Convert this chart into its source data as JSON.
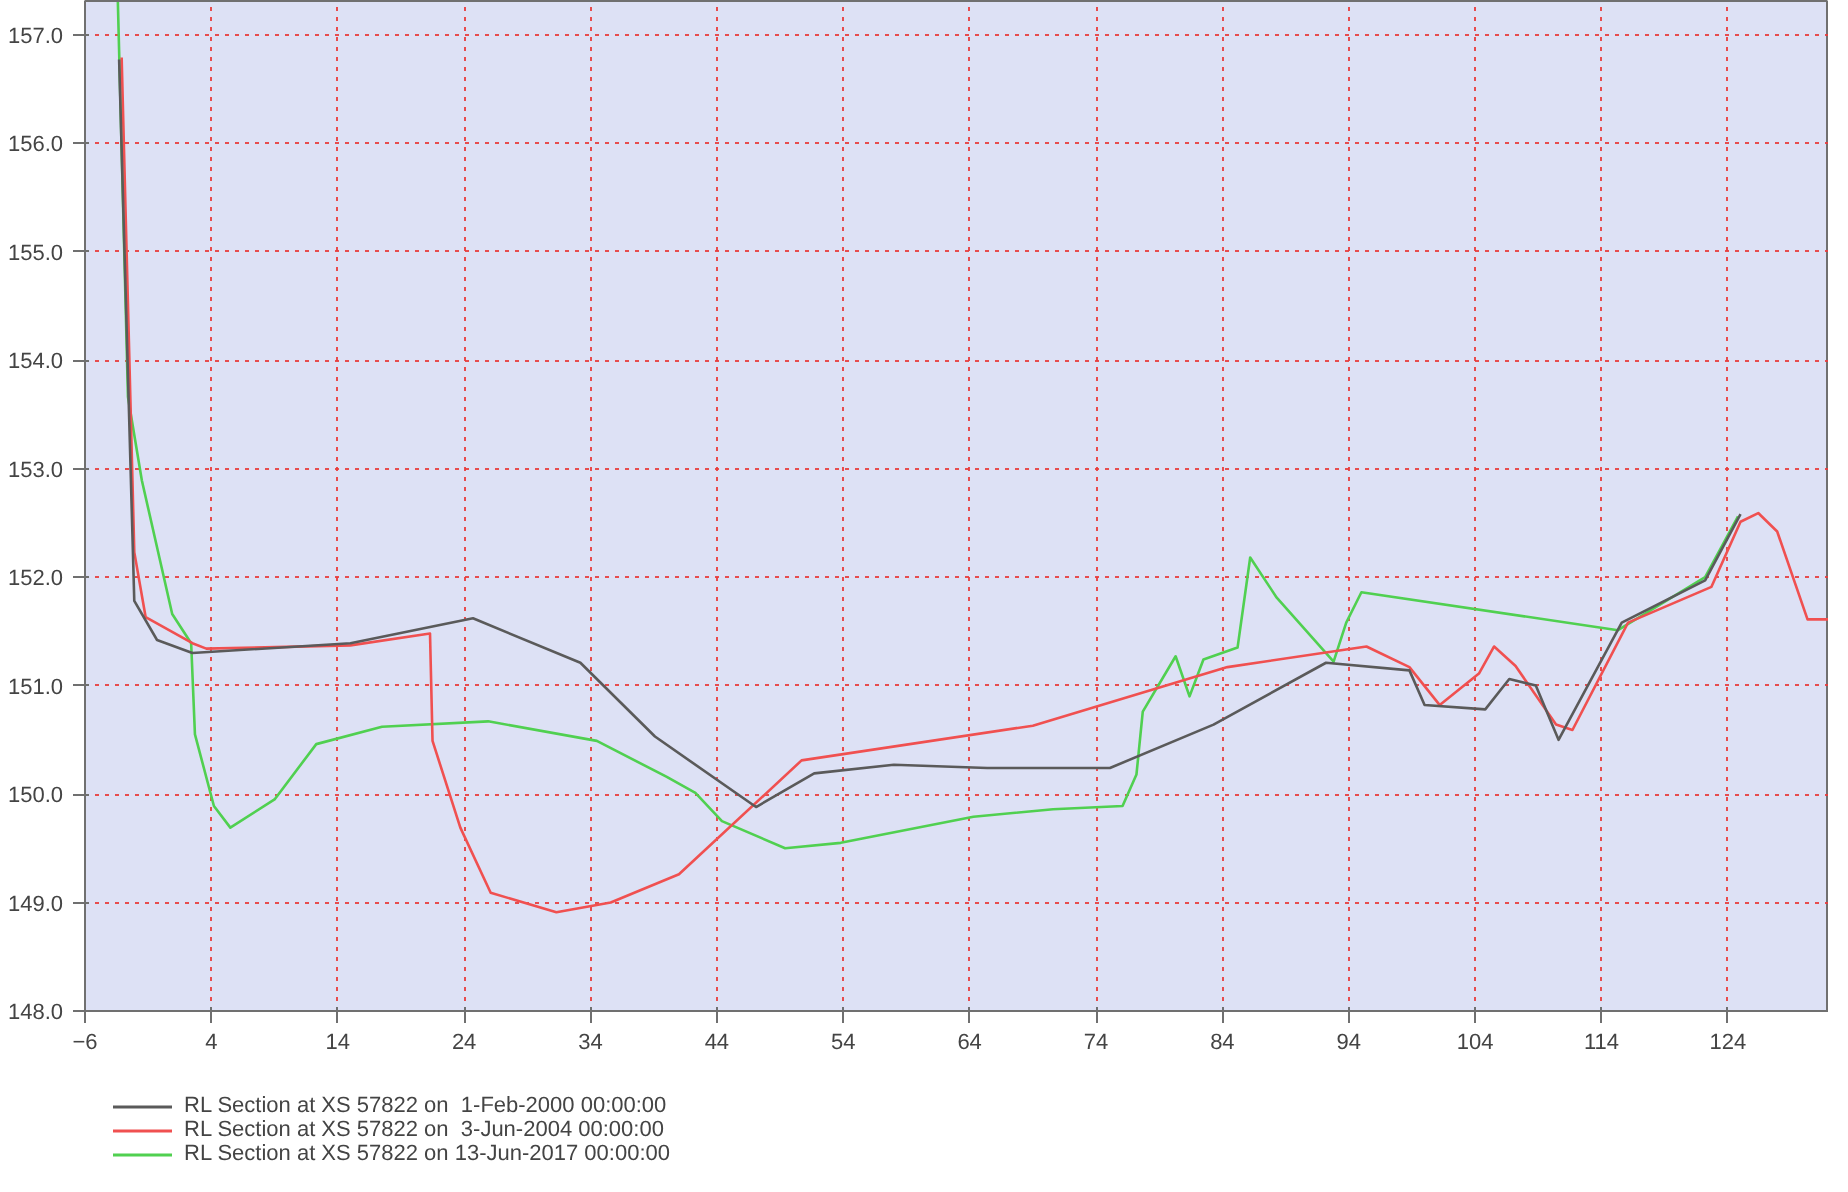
{
  "chart_data": {
    "type": "line",
    "xlim": [
      -6,
      132
    ],
    "ylim": [
      148,
      157.31
    ],
    "xticks": [
      -6,
      4,
      14,
      24,
      34,
      44,
      54,
      64,
      74,
      84,
      94,
      104,
      114,
      124
    ],
    "yticks": [
      {
        "value": 148,
        "label": "148.0"
      },
      {
        "value": 149,
        "label": "149.0"
      },
      {
        "value": 150,
        "label": "150.0"
      },
      {
        "value": 151,
        "label": "151.0"
      },
      {
        "value": 152,
        "label": "152.0"
      },
      {
        "value": 153,
        "label": "153.0"
      },
      {
        "value": 154,
        "label": "154.0"
      },
      {
        "value": 155,
        "label": "155.0"
      },
      {
        "value": 156,
        "label": "156.0"
      },
      {
        "value": 157,
        "label": "157.0"
      }
    ],
    "grid": true,
    "legend": "bottom",
    "line_style": "solid",
    "marker": "none",
    "series": [
      {
        "name": "RL Section at XS 57822 on  1-Feb-2000 00:00:00",
        "color": "#5a5a5a",
        "x": [
          -3.3,
          -2.1,
          -0.3,
          2.5,
          15.0,
          24.7,
          33.2,
          39.1,
          47.1,
          51.7,
          58.0,
          65.4,
          75.1,
          83.3,
          92.2,
          98.8,
          100.0,
          104.8,
          106.7,
          108.8,
          110.6,
          115.6,
          122.2,
          125.0
        ],
        "values": [
          156.77,
          151.78,
          151.42,
          151.3,
          151.39,
          151.62,
          151.21,
          150.53,
          149.88,
          150.19,
          150.27,
          150.24,
          150.24,
          150.64,
          151.21,
          151.14,
          150.82,
          150.78,
          151.06,
          151.0,
          150.5,
          151.58,
          151.97,
          152.58
        ]
      },
      {
        "name": "RL Section at XS 57822 on  3-Jun-2004 00:00:00",
        "color": "#f05050",
        "x": [
          -3.1,
          -2.1,
          -1.2,
          2.5,
          3.6,
          15.0,
          21.3,
          21.5,
          23.7,
          26.1,
          31.3,
          35.6,
          41.0,
          50.7,
          69.0,
          84.4,
          95.4,
          98.8,
          101.2,
          104.3,
          105.5,
          107.2,
          110.4,
          111.7,
          116.1,
          122.7,
          125.0,
          126.4,
          127.9,
          130.3,
          132.0
        ],
        "values": [
          156.79,
          152.23,
          151.63,
          151.39,
          151.34,
          151.37,
          151.48,
          150.49,
          149.69,
          149.09,
          148.91,
          149.0,
          149.26,
          150.31,
          150.63,
          151.17,
          151.36,
          151.17,
          150.82,
          151.11,
          151.36,
          151.18,
          150.64,
          150.59,
          151.58,
          151.91,
          152.51,
          152.59,
          152.42,
          151.61,
          151.61
        ]
      },
      {
        "name": "RL Section at XS 57822 on 13-Jun-2017 00:00:00",
        "color": "#50d050",
        "x": [
          -3.4,
          -2.6,
          -1.5,
          0.9,
          2.4,
          2.7,
          4.2,
          5.5,
          9.0,
          12.3,
          17.5,
          25.9,
          34.5,
          40.0,
          42.3,
          44.4,
          49.4,
          53.8,
          64.3,
          70.6,
          76.1,
          77.2,
          77.7,
          80.3,
          81.4,
          82.5,
          85.2,
          86.2,
          88.3,
          92.8,
          93.8,
          95.0,
          115.3,
          122.2,
          124.8
        ],
        "values": [
          157.3,
          153.66,
          152.89,
          151.66,
          151.39,
          150.55,
          149.89,
          149.69,
          149.95,
          150.46,
          150.62,
          150.67,
          150.49,
          150.16,
          150.01,
          149.75,
          149.5,
          149.55,
          149.79,
          149.86,
          149.89,
          150.18,
          150.76,
          151.27,
          150.9,
          151.24,
          151.35,
          152.18,
          151.81,
          151.22,
          151.58,
          151.86,
          151.51,
          152.0,
          152.56
        ]
      }
    ]
  }
}
